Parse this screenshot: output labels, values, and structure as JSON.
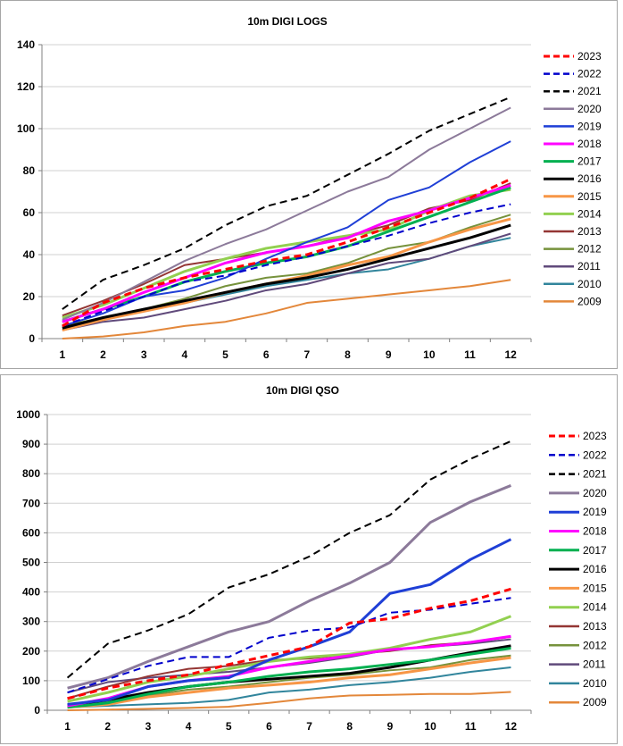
{
  "chart_data": [
    {
      "type": "line",
      "title": "10m DIGI LOGS",
      "xlabel": "",
      "ylabel": "",
      "x": [
        1,
        2,
        3,
        4,
        5,
        6,
        7,
        8,
        9,
        10,
        11,
        12
      ],
      "ylim": [
        0,
        140
      ],
      "yticks": [
        0,
        20,
        40,
        60,
        80,
        100,
        120,
        140
      ],
      "legend": "right",
      "series": [
        {
          "name": "2023",
          "color": "#ff0000",
          "dash": "dashed",
          "width": 3,
          "values": [
            6,
            17,
            24,
            29,
            33,
            37,
            40,
            46,
            53,
            60,
            67,
            76
          ]
        },
        {
          "name": "2022",
          "color": "#0000cc",
          "dash": "dashed",
          "width": 2,
          "values": [
            6,
            13,
            20,
            27,
            30,
            35,
            39,
            44,
            49,
            55,
            60,
            64
          ]
        },
        {
          "name": "2021",
          "color": "#000000",
          "dash": "dashed",
          "width": 2,
          "values": [
            14,
            28,
            35,
            43,
            54,
            63,
            68,
            78,
            88,
            99,
            107,
            115
          ]
        },
        {
          "name": "2020",
          "color": "#8c7a9a",
          "dash": "solid",
          "width": 2,
          "values": [
            9,
            17,
            27,
            37,
            45,
            52,
            61,
            70,
            77,
            90,
            100,
            110
          ]
        },
        {
          "name": "2019",
          "color": "#1f3fd6",
          "dash": "solid",
          "width": 2,
          "values": [
            6,
            12,
            20,
            23,
            29,
            38,
            46,
            53,
            66,
            72,
            84,
            94
          ]
        },
        {
          "name": "2018",
          "color": "#ff00ff",
          "dash": "solid",
          "width": 3,
          "values": [
            8,
            14,
            22,
            29,
            36,
            41,
            44,
            48,
            56,
            61,
            67,
            73
          ]
        },
        {
          "name": "2017",
          "color": "#00b050",
          "dash": "solid",
          "width": 3,
          "values": [
            8,
            14,
            20,
            27,
            32,
            36,
            39,
            44,
            51,
            58,
            65,
            72
          ]
        },
        {
          "name": "2016",
          "color": "#000000",
          "dash": "solid",
          "width": 3,
          "values": [
            5,
            10,
            14,
            18,
            22,
            26,
            29,
            33,
            38,
            43,
            48,
            54
          ]
        },
        {
          "name": "2015",
          "color": "#f79646",
          "dash": "solid",
          "width": 3,
          "values": [
            4,
            9,
            13,
            17,
            22,
            26,
            30,
            35,
            39,
            46,
            52,
            57
          ]
        },
        {
          "name": "2014",
          "color": "#92d050",
          "dash": "solid",
          "width": 3,
          "values": [
            10,
            16,
            24,
            32,
            38,
            43,
            46,
            49,
            52,
            61,
            68,
            71
          ]
        },
        {
          "name": "2013",
          "color": "#943634",
          "dash": "solid",
          "width": 2,
          "values": [
            11,
            18,
            26,
            35,
            38,
            41,
            44,
            49,
            54,
            62,
            66,
            74
          ]
        },
        {
          "name": "2012",
          "color": "#76923c",
          "dash": "solid",
          "width": 2,
          "values": [
            6,
            10,
            14,
            19,
            25,
            29,
            31,
            36,
            43,
            46,
            53,
            59
          ]
        },
        {
          "name": "2011",
          "color": "#604a7b",
          "dash": "solid",
          "width": 2,
          "values": [
            4,
            8,
            10,
            14,
            18,
            23,
            26,
            31,
            36,
            38,
            44,
            50
          ]
        },
        {
          "name": "2010",
          "color": "#31859c",
          "dash": "solid",
          "width": 2,
          "values": [
            6,
            9,
            13,
            17,
            21,
            25,
            28,
            31,
            33,
            38,
            44,
            48
          ]
        },
        {
          "name": "2009",
          "color": "#e3873a",
          "dash": "solid",
          "width": 2,
          "values": [
            0,
            1,
            3,
            6,
            8,
            12,
            17,
            19,
            21,
            23,
            25,
            28
          ]
        }
      ]
    },
    {
      "type": "line",
      "title": "10m DIGI QSO",
      "xlabel": "",
      "ylabel": "",
      "x": [
        1,
        2,
        3,
        4,
        5,
        6,
        7,
        8,
        9,
        10,
        11,
        12
      ],
      "ylim": [
        0,
        1000
      ],
      "yticks": [
        0,
        100,
        200,
        300,
        400,
        500,
        600,
        700,
        800,
        900,
        1000
      ],
      "legend": "right",
      "series": [
        {
          "name": "2023",
          "color": "#ff0000",
          "dash": "dashed",
          "width": 3,
          "values": [
            40,
            75,
            100,
            120,
            155,
            185,
            215,
            295,
            310,
            345,
            370,
            410
          ]
        },
        {
          "name": "2022",
          "color": "#0000cc",
          "dash": "dashed",
          "width": 2,
          "values": [
            60,
            105,
            150,
            180,
            180,
            245,
            270,
            280,
            330,
            340,
            360,
            380
          ]
        },
        {
          "name": "2021",
          "color": "#000000",
          "dash": "dashed",
          "width": 2,
          "values": [
            110,
            225,
            270,
            325,
            415,
            460,
            520,
            600,
            660,
            780,
            850,
            910
          ]
        },
        {
          "name": "2020",
          "color": "#8c7a9a",
          "dash": "solid",
          "width": 3,
          "values": [
            75,
            110,
            165,
            215,
            265,
            300,
            370,
            430,
            500,
            635,
            705,
            760
          ]
        },
        {
          "name": "2019",
          "color": "#1f3fd6",
          "dash": "solid",
          "width": 3,
          "values": [
            20,
            35,
            80,
            100,
            110,
            170,
            215,
            265,
            395,
            425,
            510,
            578
          ]
        },
        {
          "name": "2018",
          "color": "#ff00ff",
          "dash": "solid",
          "width": 3,
          "values": [
            15,
            40,
            80,
            100,
            115,
            145,
            165,
            185,
            205,
            215,
            230,
            250
          ]
        },
        {
          "name": "2017",
          "color": "#00b050",
          "dash": "solid",
          "width": 3,
          "values": [
            10,
            25,
            55,
            80,
            95,
            115,
            130,
            140,
            155,
            170,
            190,
            210
          ]
        },
        {
          "name": "2016",
          "color": "#000000",
          "dash": "solid",
          "width": 3,
          "values": [
            15,
            35,
            60,
            80,
            95,
            105,
            115,
            125,
            145,
            170,
            195,
            218
          ]
        },
        {
          "name": "2015",
          "color": "#f79646",
          "dash": "solid",
          "width": 3,
          "values": [
            10,
            20,
            45,
            60,
            75,
            85,
            95,
            110,
            120,
            140,
            160,
            178
          ]
        },
        {
          "name": "2014",
          "color": "#92d050",
          "dash": "solid",
          "width": 3,
          "values": [
            30,
            60,
            95,
            115,
            140,
            165,
            180,
            190,
            210,
            240,
            265,
            318
          ]
        },
        {
          "name": "2013",
          "color": "#943634",
          "dash": "solid",
          "width": 2,
          "values": [
            40,
            80,
            115,
            140,
            150,
            170,
            175,
            190,
            200,
            220,
            230,
            248
          ]
        },
        {
          "name": "2012",
          "color": "#76923c",
          "dash": "solid",
          "width": 2,
          "values": [
            15,
            30,
            50,
            70,
            80,
            95,
            110,
            120,
            135,
            145,
            170,
            185
          ]
        },
        {
          "name": "2011",
          "color": "#604a7b",
          "dash": "solid",
          "width": 2,
          "values": [
            60,
            95,
            110,
            120,
            130,
            145,
            160,
            180,
            205,
            215,
            225,
            240
          ]
        },
        {
          "name": "2010",
          "color": "#31859c",
          "dash": "solid",
          "width": 2,
          "values": [
            10,
            15,
            20,
            25,
            35,
            60,
            70,
            85,
            95,
            110,
            130,
            145
          ]
        },
        {
          "name": "2009",
          "color": "#e3873a",
          "dash": "solid",
          "width": 2,
          "values": [
            0,
            2,
            5,
            8,
            12,
            25,
            40,
            50,
            52,
            55,
            55,
            62
          ]
        }
      ]
    }
  ]
}
